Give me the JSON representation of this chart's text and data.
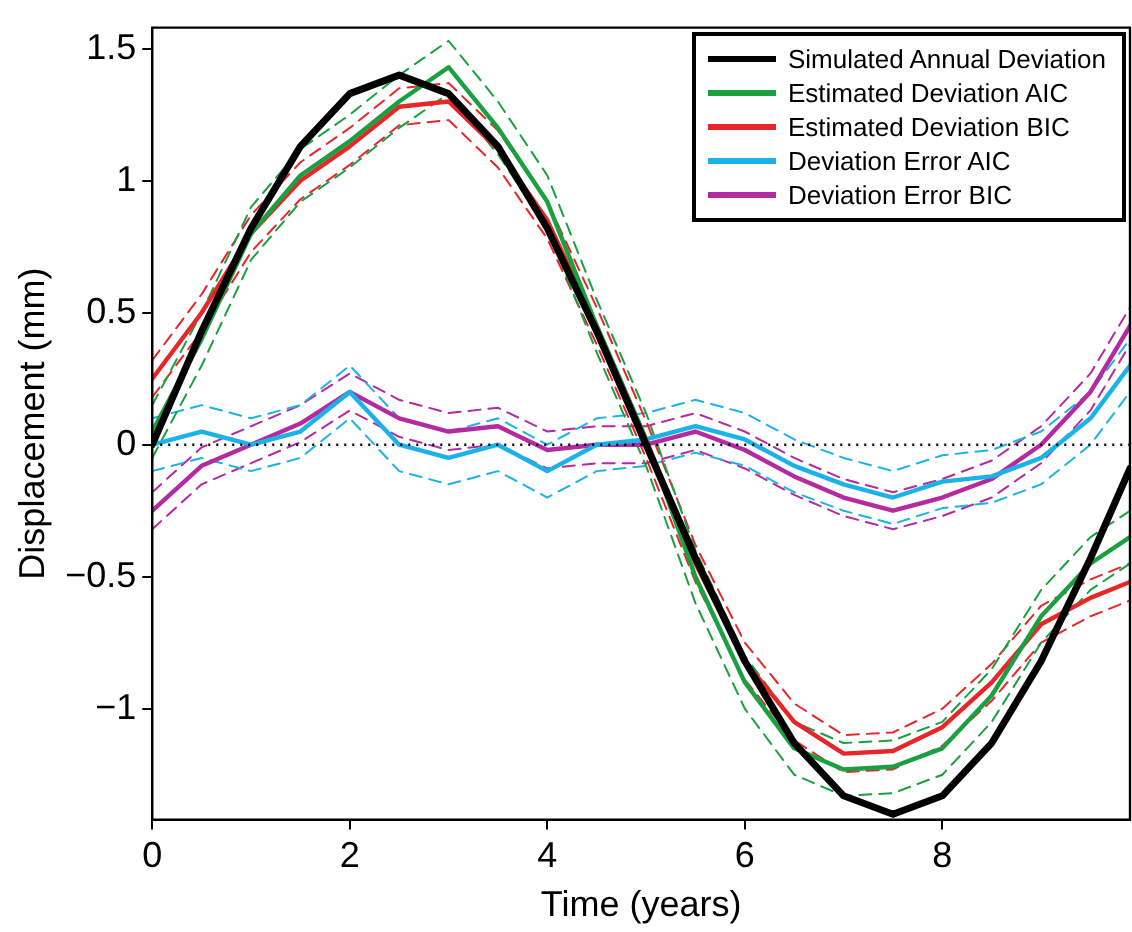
{
  "chart_data": {
    "type": "line",
    "xlabel": "Time (years)",
    "ylabel": "Displacement (mm)",
    "x": [
      0,
      0.5,
      1,
      1.5,
      2,
      2.5,
      3,
      3.5,
      4,
      4.5,
      5,
      5.5,
      6,
      6.5,
      7,
      7.5,
      8,
      8.5,
      9,
      9.5,
      9.9
    ],
    "xlim": [
      0,
      9.9
    ],
    "xticks": [
      0,
      2,
      4,
      6,
      8
    ],
    "ylim": [
      -1.42,
      1.58
    ],
    "yticks": [
      {
        "value": -1,
        "label": "−1"
      },
      {
        "value": -0.5,
        "label": "−0.5"
      },
      0,
      0.5,
      1,
      1.5
    ],
    "grid": false,
    "legend": "top right",
    "marker": "none",
    "line_style": "solid",
    "ref_lines": [
      {
        "axis": "y",
        "value": 0,
        "color": "#000000",
        "line_style": "dotted"
      }
    ],
    "series": [
      {
        "name": "Simulated Annual Deviation",
        "color": "#000000",
        "values": [
          0,
          0.43,
          0.82,
          1.13,
          1.33,
          1.4,
          1.33,
          1.13,
          0.82,
          0.43,
          0,
          -0.43,
          -0.82,
          -1.13,
          -1.33,
          -1.4,
          -1.33,
          -1.13,
          -0.82,
          -0.43,
          -0.09
        ]
      },
      {
        "name": "Estimated Deviation AIC",
        "color": "#1aa040",
        "values": [
          0.05,
          0.4,
          0.8,
          1.02,
          1.15,
          1.3,
          1.43,
          1.2,
          0.92,
          0.45,
          0.02,
          -0.5,
          -0.9,
          -1.15,
          -1.23,
          -1.22,
          -1.15,
          -0.95,
          -0.65,
          -0.45,
          -0.35
        ]
      },
      {
        "name": "Estimated Deviation BIC",
        "color": "#e8262a",
        "values": [
          0.25,
          0.5,
          0.8,
          1.0,
          1.13,
          1.28,
          1.3,
          1.12,
          0.85,
          0.45,
          0.02,
          -0.45,
          -0.82,
          -1.05,
          -1.17,
          -1.16,
          -1.07,
          -0.9,
          -0.68,
          -0.58,
          -0.52
        ]
      },
      {
        "name": "Deviation Error AIC",
        "color": "#1ab2e8",
        "values": [
          0,
          0.05,
          0,
          0.05,
          0.2,
          0,
          -0.05,
          0,
          -0.1,
          0,
          0.02,
          0.07,
          0.02,
          -0.08,
          -0.15,
          -0.2,
          -0.14,
          -0.12,
          -0.05,
          0.1,
          0.3
        ]
      },
      {
        "name": "Deviation Error BIC",
        "color": "#b42aa0",
        "values": [
          -0.25,
          -0.08,
          0,
          0.08,
          0.2,
          0.1,
          0.05,
          0.07,
          -0.02,
          0,
          0,
          0.05,
          -0.02,
          -0.12,
          -0.2,
          -0.25,
          -0.2,
          -0.13,
          0,
          0.2,
          0.45
        ]
      },
      {
        "color": "#1aa040",
        "line_style": "dashed",
        "values": [
          -0.05,
          0.3,
          0.7,
          0.92,
          1.05,
          1.2,
          1.33,
          1.1,
          0.82,
          0.35,
          -0.08,
          -0.6,
          -1.0,
          -1.25,
          -1.33,
          -1.32,
          -1.25,
          -1.05,
          -0.75,
          -0.55,
          -0.45
        ]
      },
      {
        "color": "#1aa040",
        "line_style": "dashed",
        "values": [
          0.15,
          0.5,
          0.9,
          1.12,
          1.25,
          1.4,
          1.53,
          1.3,
          1.02,
          0.55,
          0.12,
          -0.4,
          -0.8,
          -1.05,
          -1.13,
          -1.12,
          -1.05,
          -0.85,
          -0.55,
          -0.35,
          -0.25
        ]
      },
      {
        "color": "#e8262a",
        "line_style": "dashed",
        "values": [
          0.18,
          0.43,
          0.73,
          0.93,
          1.06,
          1.21,
          1.23,
          1.05,
          0.78,
          0.38,
          -0.05,
          -0.52,
          -0.89,
          -1.12,
          -1.24,
          -1.23,
          -1.14,
          -0.97,
          -0.75,
          -0.65,
          -0.59
        ]
      },
      {
        "color": "#e8262a",
        "line_style": "dashed",
        "values": [
          0.32,
          0.57,
          0.87,
          1.07,
          1.2,
          1.35,
          1.37,
          1.19,
          0.92,
          0.52,
          0.09,
          -0.38,
          -0.75,
          -0.98,
          -1.1,
          -1.09,
          -1.0,
          -0.83,
          -0.61,
          -0.51,
          -0.45
        ]
      },
      {
        "color": "#1ab2e8",
        "line_style": "dashed",
        "values": [
          -0.1,
          -0.05,
          -0.1,
          -0.05,
          0.1,
          -0.1,
          -0.15,
          -0.1,
          -0.2,
          -0.1,
          -0.08,
          -0.03,
          -0.08,
          -0.18,
          -0.25,
          -0.3,
          -0.24,
          -0.22,
          -0.15,
          0,
          0.2
        ]
      },
      {
        "color": "#1ab2e8",
        "line_style": "dashed",
        "values": [
          0.1,
          0.15,
          0.1,
          0.15,
          0.3,
          0.1,
          0.05,
          0.1,
          0,
          0.1,
          0.12,
          0.17,
          0.12,
          0.02,
          -0.05,
          -0.1,
          -0.04,
          -0.02,
          0.05,
          0.2,
          0.4
        ]
      },
      {
        "color": "#b42aa0",
        "line_style": "dashed",
        "values": [
          -0.32,
          -0.15,
          -0.07,
          0.01,
          0.13,
          0.03,
          -0.02,
          0,
          -0.09,
          -0.07,
          -0.07,
          -0.02,
          -0.09,
          -0.19,
          -0.27,
          -0.32,
          -0.27,
          -0.2,
          -0.07,
          0.13,
          0.38
        ]
      },
      {
        "color": "#b42aa0",
        "line_style": "dashed",
        "values": [
          -0.18,
          -0.01,
          0.07,
          0.15,
          0.27,
          0.17,
          0.12,
          0.14,
          0.05,
          0.07,
          0.07,
          0.12,
          0.05,
          -0.05,
          -0.13,
          -0.18,
          -0.13,
          -0.06,
          0.07,
          0.27,
          0.52
        ]
      }
    ]
  }
}
